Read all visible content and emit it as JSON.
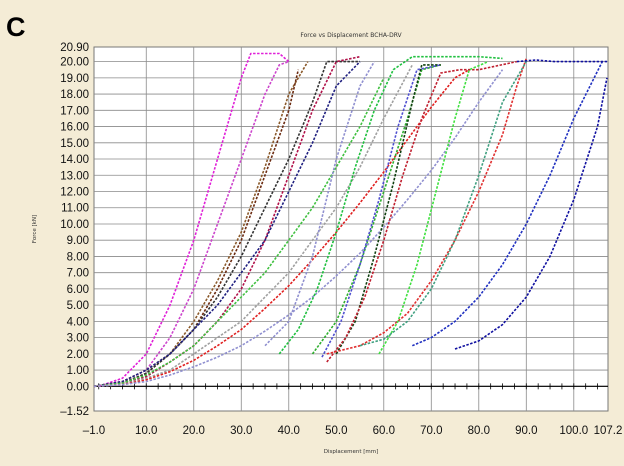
{
  "panel_label": "C",
  "chart_data": {
    "type": "line",
    "title": "Force vs Displacement BCHA-DRV",
    "xlabel": "Displacement [mm]",
    "ylabel": "Force [kN]",
    "xlim": [
      -1.0,
      107.2
    ],
    "ylim": [
      -1.52,
      20.9
    ],
    "x_ticks": [
      "–1.0",
      "10.0",
      "20.0",
      "30.0",
      "40.0",
      "50.0",
      "60.0",
      "70.0",
      "80.0",
      "90.0",
      "100.0",
      "107.2"
    ],
    "y_ticks": [
      "20.90",
      "20.00",
      "19.00",
      "18.00",
      "17.00",
      "16.00",
      "15.00",
      "14.00",
      "13.00",
      "12.00",
      "11.00",
      "10.00",
      "9.00",
      "8.00",
      "7.00",
      "6.00",
      "5.00",
      "4.00",
      "3.00",
      "2.00",
      "1.00",
      "0.00",
      "–1.52"
    ],
    "grid": true,
    "legend": "none",
    "series": [
      {
        "color": "#e020d8",
        "x": [
          0,
          5,
          10,
          15,
          20,
          25,
          30,
          32,
          38,
          40
        ],
        "y": [
          0,
          0.5,
          2,
          5,
          9,
          14,
          19,
          20.5,
          20.5,
          20
        ]
      },
      {
        "color": "#cc44cc",
        "x": [
          -1,
          5,
          10,
          15,
          20,
          25,
          30,
          35,
          38,
          40
        ],
        "y": [
          0,
          0.3,
          1,
          3,
          6,
          10,
          14,
          18,
          19.8,
          20
        ]
      },
      {
        "color": "#8b5a2b",
        "x": [
          -1,
          5,
          10,
          15,
          20,
          25,
          30,
          35,
          40,
          44
        ],
        "y": [
          0,
          0.3,
          1,
          2,
          4,
          6.5,
          9.5,
          13.5,
          18,
          20
        ]
      },
      {
        "color": "#6b2a10",
        "x": [
          -1,
          5,
          10,
          15,
          20,
          25,
          30,
          35,
          40,
          42
        ],
        "y": [
          0,
          0.2,
          0.8,
          2,
          3.5,
          6,
          9,
          13,
          17,
          19.5
        ]
      },
      {
        "color": "#333333",
        "x": [
          -1,
          5,
          10,
          15,
          20,
          25,
          30,
          35,
          40,
          45,
          48,
          55
        ],
        "y": [
          0,
          0.2,
          0.8,
          2,
          3.5,
          5.5,
          8,
          11,
          14,
          17.5,
          20,
          20
        ]
      },
      {
        "color": "#b01048",
        "x": [
          -1,
          5,
          10,
          15,
          20,
          25,
          30,
          35,
          40,
          45,
          50,
          55
        ],
        "y": [
          0,
          0.2,
          0.6,
          1.5,
          2.5,
          4,
          6,
          9,
          13,
          17,
          20,
          20.3
        ]
      },
      {
        "color": "#202080",
        "x": [
          -1,
          5,
          10,
          15,
          20,
          25,
          30,
          35,
          40,
          45,
          50,
          55
        ],
        "y": [
          0,
          0.3,
          1,
          2,
          3.5,
          5,
          7,
          9,
          12,
          15,
          18.5,
          20
        ]
      },
      {
        "color": "#40c040",
        "x": [
          -1,
          5,
          10,
          15,
          20,
          25,
          30,
          35,
          40,
          45,
          50,
          55,
          60
        ],
        "y": [
          0,
          0.2,
          0.7,
          1.5,
          2.5,
          4,
          5.5,
          7,
          9,
          11,
          13.5,
          16,
          19
        ]
      },
      {
        "color": "#a0a0a0",
        "x": [
          -1,
          5,
          10,
          15,
          20,
          25,
          30,
          35,
          40,
          45,
          50,
          55,
          60,
          66
        ],
        "y": [
          0,
          0.1,
          0.5,
          1,
          2,
          3,
          4,
          5.5,
          7,
          9,
          11,
          13.5,
          16.5,
          19.8
        ]
      },
      {
        "color": "#e02020",
        "x": [
          -1,
          5,
          10,
          15,
          20,
          25,
          30,
          35,
          40,
          45,
          50,
          55,
          60,
          65,
          70,
          75,
          78
        ],
        "y": [
          0,
          0.1,
          0.4,
          0.9,
          1.6,
          2.5,
          3.5,
          4.8,
          6.2,
          7.8,
          9.5,
          11.3,
          13.2,
          15.2,
          17.2,
          19,
          19.5
        ]
      },
      {
        "color": "#9090d0",
        "x": [
          -1,
          5,
          10,
          15,
          20,
          25,
          30,
          35,
          40,
          45,
          50,
          55,
          60,
          65,
          70,
          75,
          80,
          85
        ],
        "y": [
          0,
          0.1,
          0.3,
          0.7,
          1.2,
          1.8,
          2.5,
          3.4,
          4.4,
          5.5,
          6.8,
          8.2,
          9.8,
          11.5,
          13.3,
          15.3,
          17.5,
          19.5
        ]
      },
      {
        "color": "#9090d0",
        "x": [
          35,
          40,
          45,
          50,
          55,
          58
        ],
        "y": [
          2.5,
          4,
          8,
          14,
          18.5,
          20
        ]
      },
      {
        "color": "#20c040",
        "x": [
          38,
          42,
          46,
          50,
          54,
          58,
          62,
          66,
          70,
          75,
          80,
          85
        ],
        "y": [
          2,
          3.5,
          6,
          9.5,
          13.5,
          17,
          19.5,
          20.3,
          20.3,
          20.3,
          20.3,
          20.2
        ]
      },
      {
        "color": "#30b030",
        "x": [
          45,
          50,
          55,
          60,
          65,
          68,
          72
        ],
        "y": [
          2,
          4,
          7.5,
          12,
          16.5,
          19.5,
          19.8
        ]
      },
      {
        "color": "#104010",
        "x": [
          50,
          54,
          58,
          62,
          66,
          68,
          72
        ],
        "y": [
          2,
          4,
          8,
          12.5,
          17.5,
          19.8,
          19.8
        ]
      },
      {
        "color": "#5050d0",
        "x": [
          47,
          51,
          55,
          59,
          63,
          67,
          72
        ],
        "y": [
          1.8,
          4,
          7.5,
          11.5,
          16,
          19.5,
          19.8
        ]
      },
      {
        "color": "#c02030",
        "x": [
          48,
          52,
          56,
          60,
          64,
          68,
          72,
          76,
          80,
          88
        ],
        "y": [
          1.5,
          3,
          5.5,
          9,
          13,
          16.5,
          19.3,
          19.5,
          19.5,
          20
        ]
      },
      {
        "color": "#e03030",
        "x": [
          48,
          55,
          60,
          65,
          70,
          75,
          80,
          85,
          88,
          90
        ],
        "y": [
          2,
          2.5,
          3.3,
          4.5,
          6.5,
          9,
          12,
          15.5,
          18.5,
          20.2
        ]
      },
      {
        "color": "#40e040",
        "x": [
          59,
          63,
          67,
          71,
          75,
          78,
          82
        ],
        "y": [
          2,
          4,
          7.5,
          12,
          16.5,
          19.5,
          20
        ]
      },
      {
        "color": "#40a080",
        "x": [
          55,
          60,
          65,
          70,
          75,
          80,
          85,
          90
        ],
        "y": [
          2.5,
          2.9,
          4,
          6,
          9,
          13,
          17.5,
          20
        ]
      },
      {
        "color": "#2030c0",
        "x": [
          66,
          70,
          75,
          80,
          85,
          90,
          95,
          100,
          106
        ],
        "y": [
          2.5,
          3,
          4,
          5.5,
          7.5,
          10,
          13,
          16.5,
          20
        ]
      },
      {
        "color": "#1010a0",
        "x": [
          75,
          80,
          85,
          90,
          95,
          100,
          105,
          107
        ],
        "y": [
          2.3,
          2.8,
          3.8,
          5.5,
          8,
          11.5,
          16,
          19
        ]
      },
      {
        "color": "#1010a0",
        "x": [
          88,
          92,
          96,
          100,
          104,
          107
        ],
        "y": [
          20,
          20.1,
          20,
          20,
          20,
          20
        ]
      }
    ]
  }
}
